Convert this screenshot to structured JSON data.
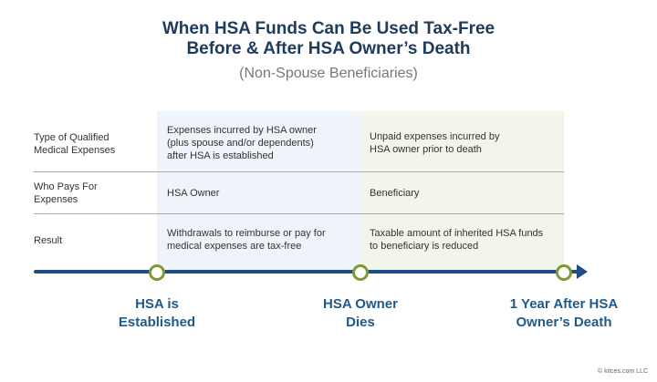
{
  "title": {
    "line1": "When HSA Funds Can Be Used Tax-Free",
    "line2": "Before & After HSA Owner’s Death"
  },
  "subtitle": "(Non-Spouse Beneficiaries)",
  "rows": [
    {
      "label": "Type of Qualified Medical Expenses",
      "col1": "Expenses incurred by HSA owner (plus spouse and/or dependents) after HSA is established",
      "col2": "Unpaid expenses incurred by HSA owner prior to death"
    },
    {
      "label": "Who Pays For Expenses",
      "col1": "HSA Owner",
      "col2": "Beneficiary"
    },
    {
      "label": "Result",
      "col1": "Withdrawals to reimburse or pay for medical expenses are tax-free",
      "col2": "Taxable amount of inherited HSA funds to beneficiary is reduced"
    }
  ],
  "milestones": [
    {
      "line1": "HSA is",
      "line2": "Established"
    },
    {
      "line1": "HSA Owner",
      "line2": "Dies"
    },
    {
      "line1": "1 Year After HSA",
      "line2": "Owner’s Death"
    }
  ],
  "copyright": "© kitces.com LLC",
  "colors": {
    "navy": "#1f3b5c",
    "timeline": "#1f4e85",
    "milestone_ring": "#7d9a33",
    "col1_bg": "#eef4fa",
    "col2_bg": "#f2f5ea"
  }
}
